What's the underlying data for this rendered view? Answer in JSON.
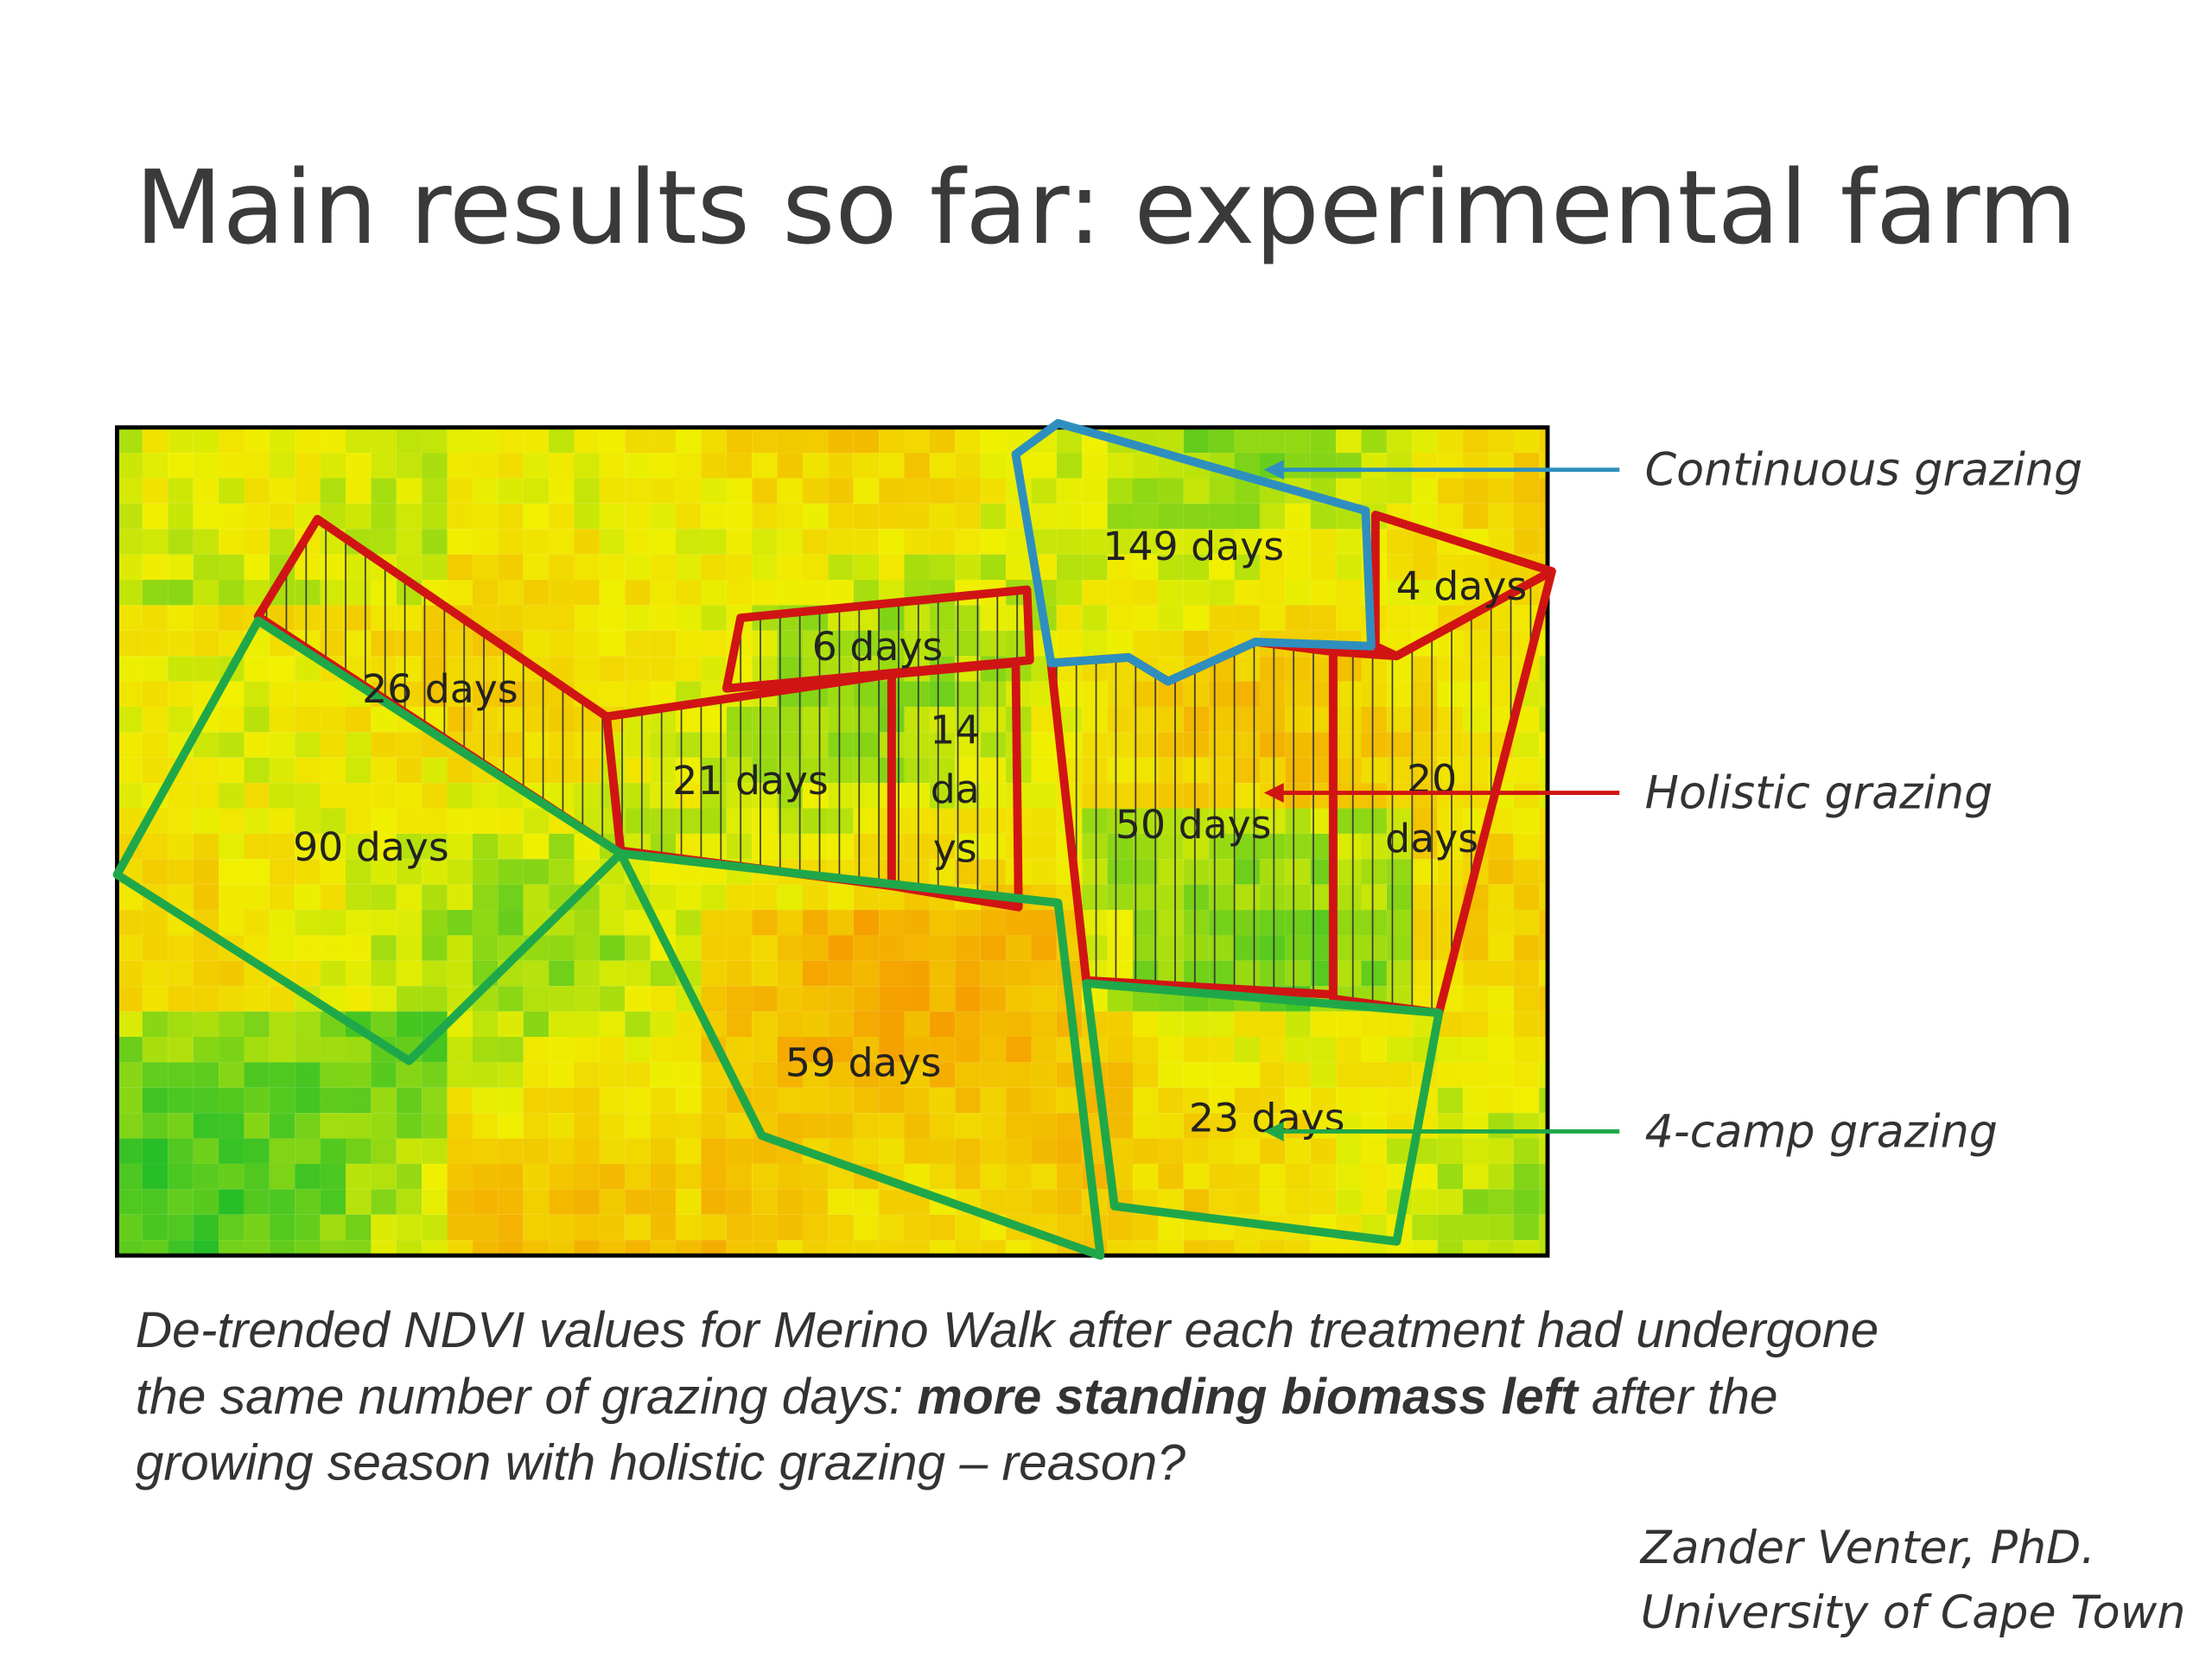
{
  "title": "Main results so far: experimental farm",
  "paddocks": [
    {
      "lines": [
        "26 days"
      ]
    },
    {
      "lines": [
        "90 days"
      ]
    },
    {
      "lines": [
        "6 days"
      ]
    },
    {
      "lines": [
        "21 days"
      ]
    },
    {
      "lines": [
        "14",
        "da",
        "ys"
      ]
    },
    {
      "lines": [
        "149 days"
      ]
    },
    {
      "lines": [
        "4 days"
      ]
    },
    {
      "lines": [
        "50 days"
      ]
    },
    {
      "lines": [
        "20",
        "days"
      ]
    },
    {
      "lines": [
        "59 days"
      ]
    },
    {
      "lines": [
        "23 days"
      ]
    }
  ],
  "legend": [
    {
      "label": "Continuous grazing",
      "color": "#2e8fbf"
    },
    {
      "label": "Holistic grazing",
      "color": "#d01414"
    },
    {
      "label": "4-camp grazing",
      "color": "#1fa84a"
    }
  ],
  "caption": [
    [
      {
        "text": "De-trended NDVI values for Merino Walk after each treatment had undergone",
        "bold": false
      }
    ],
    [
      {
        "text": "the same number of grazing days: ",
        "bold": false
      },
      {
        "text": "more standing biomass left",
        "bold": true
      },
      {
        "text": " after the",
        "bold": false
      }
    ],
    [
      {
        "text": "growing season with holistic grazing – reason?",
        "bold": false
      }
    ]
  ],
  "author": [
    "Zander Venter, PhD.",
    "University of Cape Town"
  ]
}
